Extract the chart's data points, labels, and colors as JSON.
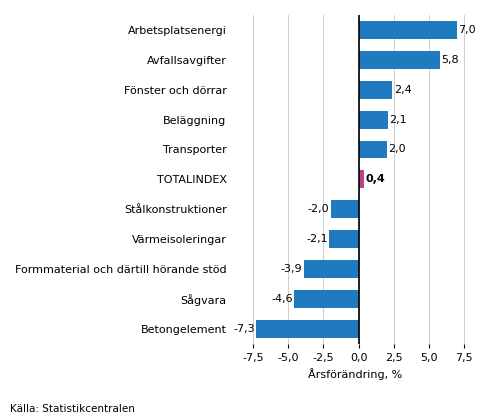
{
  "categories": [
    "Arbetsplatsenergi",
    "Avfallsavgifter",
    "Fönster och dörrar",
    "Beläggning",
    "Transporter",
    "TOTALINDEX",
    "Stålkonstruktioner",
    "Värmeisoleringar",
    "Formmaterial och därtill hörande stöd",
    "Sågvara",
    "Betongelement"
  ],
  "values": [
    7.0,
    5.8,
    2.4,
    2.1,
    2.0,
    0.4,
    -2.0,
    -2.1,
    -3.9,
    -4.6,
    -7.3
  ],
  "bar_colors": [
    "#1f7abf",
    "#1f7abf",
    "#1f7abf",
    "#1f7abf",
    "#1f7abf",
    "#c0408f",
    "#1f7abf",
    "#1f7abf",
    "#1f7abf",
    "#1f7abf",
    "#1f7abf"
  ],
  "xlabel": "Årsförändring, %",
  "xlim": [
    -9.0,
    8.5
  ],
  "xticks": [
    -7.5,
    -5.0,
    -2.5,
    0.0,
    2.5,
    5.0,
    7.5
  ],
  "xtick_labels": [
    "-7,5",
    "-5,0",
    "-2,5",
    "0,0",
    "2,5",
    "5,0",
    "7,5"
  ],
  "source_text": "Källa: Statistikcentralen",
  "totalindex_label": "TOTALINDEX",
  "background_color": "#ffffff",
  "grid_color": "#cccccc",
  "value_labels": [
    "7,0",
    "5,8",
    "2,4",
    "2,1",
    "2,0",
    "0,4",
    "-2,0",
    "-2,1",
    "-3,9",
    "-4,6",
    "-7,3"
  ]
}
